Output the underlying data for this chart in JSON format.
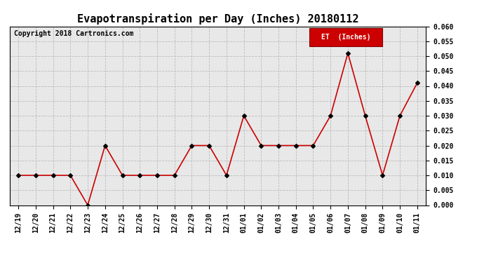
{
  "title": "Evapotranspiration per Day (Inches) 20180112",
  "copyright": "Copyright 2018 Cartronics.com",
  "legend_label": "ET  (Inches)",
  "x_labels": [
    "12/19",
    "12/20",
    "12/21",
    "12/22",
    "12/23",
    "12/24",
    "12/25",
    "12/26",
    "12/27",
    "12/28",
    "12/29",
    "12/30",
    "12/31",
    "01/01",
    "01/02",
    "01/03",
    "01/04",
    "01/05",
    "01/06",
    "01/07",
    "01/08",
    "01/09",
    "01/10",
    "01/11"
  ],
  "y_values": [
    0.01,
    0.01,
    0.01,
    0.01,
    0.0,
    0.02,
    0.01,
    0.01,
    0.01,
    0.01,
    0.02,
    0.02,
    0.01,
    0.03,
    0.02,
    0.02,
    0.02,
    0.02,
    0.03,
    0.051,
    0.03,
    0.01,
    0.03,
    0.041
  ],
  "ylim": [
    0.0,
    0.06
  ],
  "yticks": [
    0.0,
    0.005,
    0.01,
    0.015,
    0.02,
    0.025,
    0.03,
    0.035,
    0.04,
    0.045,
    0.05,
    0.055,
    0.06
  ],
  "line_color": "#cc0000",
  "marker_color": "#000000",
  "marker": "D",
  "marker_size": 3,
  "line_width": 1.2,
  "grid_color": "#bbbbbb",
  "grid_style": "--",
  "background_color": "#ffffff",
  "plot_bg_color": "#e8e8e8",
  "legend_bg": "#cc0000",
  "legend_text_color": "#ffffff",
  "title_fontsize": 11,
  "copyright_fontsize": 7,
  "tick_fontsize": 7,
  "legend_fontsize": 7
}
